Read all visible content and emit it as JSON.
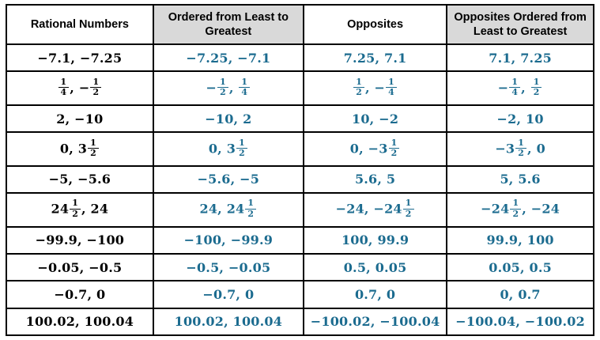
{
  "colors": {
    "data_text": "#1b6b8f",
    "header_bg": "#d9d9d9",
    "border": "#000000"
  },
  "table": {
    "headers": [
      {
        "label": "Rational Numbers",
        "shaded": false
      },
      {
        "label": "Ordered from Least to Greatest",
        "shaded": true
      },
      {
        "label": "Opposites",
        "shaded": false
      },
      {
        "label": "Opposites Ordered from Least to Greatest",
        "shaded": true
      }
    ],
    "rows": [
      [
        [
          {
            "t": "−7.1, −7.25"
          }
        ],
        [
          {
            "t": "−7.25, −7.1"
          }
        ],
        [
          {
            "t": "7.25, 7.1"
          }
        ],
        [
          {
            "t": "7.1, 7.25"
          }
        ]
      ],
      [
        [
          {
            "n": "1",
            "d": "4"
          },
          {
            "t": ", −"
          },
          {
            "n": "1",
            "d": "2"
          }
        ],
        [
          {
            "t": "−"
          },
          {
            "n": "1",
            "d": "2"
          },
          {
            "t": ", "
          },
          {
            "n": "1",
            "d": "4"
          }
        ],
        [
          {
            "n": "1",
            "d": "2"
          },
          {
            "t": ", −"
          },
          {
            "n": "1",
            "d": "4"
          }
        ],
        [
          {
            "t": "−"
          },
          {
            "n": "1",
            "d": "4"
          },
          {
            "t": ", "
          },
          {
            "n": "1",
            "d": "2"
          }
        ]
      ],
      [
        [
          {
            "t": "2, −10"
          }
        ],
        [
          {
            "t": "−10, 2"
          }
        ],
        [
          {
            "t": "10, −2"
          }
        ],
        [
          {
            "t": "−2, 10"
          }
        ]
      ],
      [
        [
          {
            "t": "0, 3"
          },
          {
            "n": "1",
            "d": "2"
          }
        ],
        [
          {
            "t": "0, 3"
          },
          {
            "n": "1",
            "d": "2"
          }
        ],
        [
          {
            "t": "0, −3"
          },
          {
            "n": "1",
            "d": "2"
          }
        ],
        [
          {
            "t": "−3"
          },
          {
            "n": "1",
            "d": "2"
          },
          {
            "t": ", 0"
          }
        ]
      ],
      [
        [
          {
            "t": "−5, −5.6"
          }
        ],
        [
          {
            "t": "−5.6, −5"
          }
        ],
        [
          {
            "t": "5.6, 5"
          }
        ],
        [
          {
            "t": "5, 5.6"
          }
        ]
      ],
      [
        [
          {
            "t": "24"
          },
          {
            "n": "1",
            "d": "2"
          },
          {
            "t": ", 24"
          }
        ],
        [
          {
            "t": "24, 24"
          },
          {
            "n": "1",
            "d": "2"
          }
        ],
        [
          {
            "t": "−24, −24"
          },
          {
            "n": "1",
            "d": "2"
          }
        ],
        [
          {
            "t": "−24"
          },
          {
            "n": "1",
            "d": "2"
          },
          {
            "t": ", −24"
          }
        ]
      ],
      [
        [
          {
            "t": "−99.9, −100"
          }
        ],
        [
          {
            "t": "−100, −99.9"
          }
        ],
        [
          {
            "t": "100, 99.9"
          }
        ],
        [
          {
            "t": "99.9, 100"
          }
        ]
      ],
      [
        [
          {
            "t": "−0.05, −0.5"
          }
        ],
        [
          {
            "t": "−0.5, −0.05"
          }
        ],
        [
          {
            "t": "0.5, 0.05"
          }
        ],
        [
          {
            "t": "0.05, 0.5"
          }
        ]
      ],
      [
        [
          {
            "t": "−0.7, 0"
          }
        ],
        [
          {
            "t": "−0.7, 0"
          }
        ],
        [
          {
            "t": "0.7, 0"
          }
        ],
        [
          {
            "t": "0, 0.7"
          }
        ]
      ],
      [
        [
          {
            "t": "100.02, 100.04"
          }
        ],
        [
          {
            "t": "100.02, 100.04"
          }
        ],
        [
          {
            "t": "−100.02, −100.04"
          }
        ],
        [
          {
            "t": "−100.04, −100.02"
          }
        ]
      ]
    ]
  }
}
